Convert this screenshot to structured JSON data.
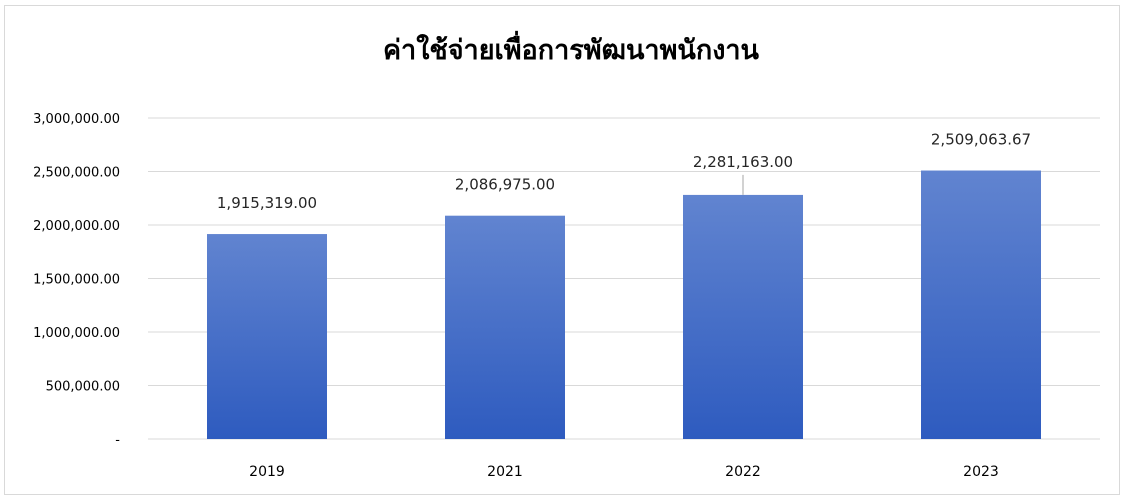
{
  "chart_data": {
    "type": "bar",
    "title": "ค่าใช้จ่ายเพื่อการพัฒนาพนักงาน",
    "xlabel": "",
    "ylabel": "",
    "categories": [
      "2019",
      "2021",
      "2022",
      "2023"
    ],
    "values": [
      1915319.0,
      2086975.0,
      2281163.0,
      2509063.67
    ],
    "data_labels": [
      "1,915,319.00",
      "2,086,975.00",
      "2,281,163.00",
      "2,509,063.67"
    ],
    "ylim": [
      0,
      3000000
    ],
    "y_ticks": [
      0,
      500000,
      1000000,
      1500000,
      2000000,
      2500000,
      3000000
    ],
    "y_tick_labels": [
      "-",
      "500,000.00",
      "1,000,000.00",
      "1,500,000.00",
      "2,000,000.00",
      "2,500,000.00",
      "3,000,000.00"
    ],
    "grid": true,
    "legend": "none",
    "colors": {
      "bar_top": "#6184d0",
      "bar_bottom": "#2e5bbf",
      "gridline": "#d9d9d9"
    }
  }
}
